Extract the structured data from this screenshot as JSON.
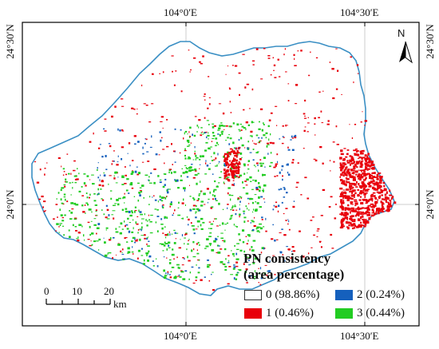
{
  "axes": {
    "top": [
      "104°0′E",
      "104°30′E"
    ],
    "bottom": [
      "104°0′E",
      "104°30′E"
    ],
    "left": [
      "24°30′N",
      "24°0′N"
    ],
    "right": [
      "24°30′N",
      "24°0′N"
    ]
  },
  "north": {
    "label": "N"
  },
  "legend": {
    "title_line1": "PN consistency",
    "title_line2": "(area percentage)",
    "items": [
      {
        "label": "0 (98.86%)",
        "color": "#ffffff"
      },
      {
        "label": "2 (0.24%)",
        "color": "#1560bd"
      },
      {
        "label": "1 (0.46%)",
        "color": "#e8000b"
      },
      {
        "label": "3 (0.44%)",
        "color": "#22cc22"
      }
    ]
  },
  "scale_bar": {
    "ticks": [
      "0",
      "10",
      "20"
    ],
    "unit": "km"
  },
  "colors": {
    "boundary": "#3a8fc4",
    "graticule": "#cccccc",
    "frame": "#000000"
  }
}
